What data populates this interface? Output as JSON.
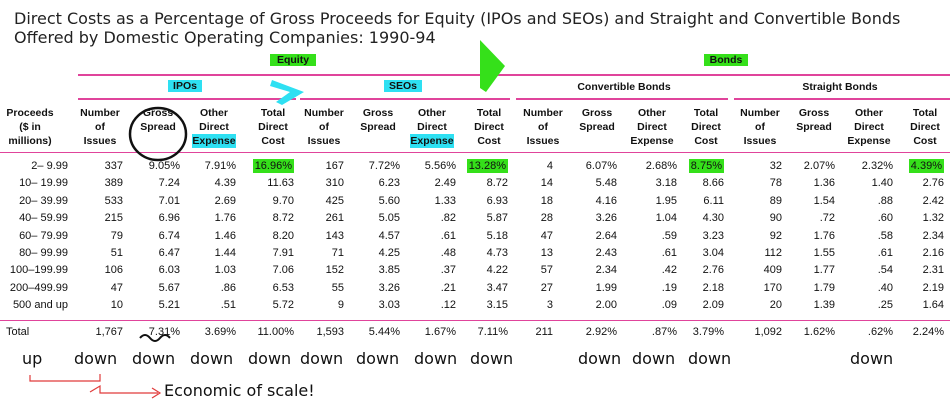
{
  "title": {
    "line1": "Direct Costs as a Percentage of Gross Proceeds for Equity (IPOs and SEOs) and Straight and Convertible Bonds",
    "line2": "Offered by Domestic Operating Companies: 1990-94"
  },
  "groups": {
    "equity": "Equity",
    "bonds": "Bonds"
  },
  "subgroups": {
    "ipos": "IPOs",
    "seos": "SEOs",
    "convertible": "Convertible Bonds",
    "straight": "Straight Bonds"
  },
  "columns": {
    "proceeds": "Proceeds\n($ in\nmillions)",
    "num": "Number\nof\nIssues",
    "gross": "Gross\nSpread",
    "other": "Other\nDirect\nExpense",
    "total": "Total\nDirect\nCost"
  },
  "rows": [
    {
      "label": "2–  9.99",
      "vals": [
        "337",
        "9.05%",
        "7.91%",
        "16.96%",
        "167",
        "7.72%",
        "5.56%",
        "13.28%",
        "4",
        "6.07%",
        "2.68%",
        "8.75%",
        "32",
        "2.07%",
        "2.32%",
        "4.39%"
      ]
    },
    {
      "label": "10– 19.99",
      "vals": [
        "389",
        "7.24",
        "4.39",
        "11.63",
        "310",
        "6.23",
        "2.49",
        "8.72",
        "14",
        "5.48",
        "3.18",
        "8.66",
        "78",
        "1.36",
        "1.40",
        "2.76"
      ]
    },
    {
      "label": "20– 39.99",
      "vals": [
        "533",
        "7.01",
        "2.69",
        "9.70",
        "425",
        "5.60",
        "1.33",
        "6.93",
        "18",
        "4.16",
        "1.95",
        "6.11",
        "89",
        "1.54",
        ".88",
        "2.42"
      ]
    },
    {
      "label": "40– 59.99",
      "vals": [
        "215",
        "6.96",
        "1.76",
        "8.72",
        "261",
        "5.05",
        ".82",
        "5.87",
        "28",
        "3.26",
        "1.04",
        "4.30",
        "90",
        ".72",
        ".60",
        "1.32"
      ]
    },
    {
      "label": "60– 79.99",
      "vals": [
        "79",
        "6.74",
        "1.46",
        "8.20",
        "143",
        "4.57",
        ".61",
        "5.18",
        "47",
        "2.64",
        ".59",
        "3.23",
        "92",
        "1.76",
        ".58",
        "2.34"
      ]
    },
    {
      "label": "80– 99.99",
      "vals": [
        "51",
        "6.47",
        "1.44",
        "7.91",
        "71",
        "4.25",
        ".48",
        "4.73",
        "13",
        "2.43",
        ".61",
        "3.04",
        "112",
        "1.55",
        ".61",
        "2.16"
      ]
    },
    {
      "label": "100–199.99",
      "vals": [
        "106",
        "6.03",
        "1.03",
        "7.06",
        "152",
        "3.85",
        ".37",
        "4.22",
        "57",
        "2.34",
        ".42",
        "2.76",
        "409",
        "1.77",
        ".54",
        "2.31"
      ]
    },
    {
      "label": "200–499.99",
      "vals": [
        "47",
        "5.67",
        ".86",
        "6.53",
        "55",
        "3.26",
        ".21",
        "3.47",
        "27",
        "1.99",
        ".19",
        "2.18",
        "170",
        "1.79",
        ".40",
        "2.19"
      ]
    },
    {
      "label": "500 and up",
      "vals": [
        "10",
        "5.21",
        ".51",
        "5.72",
        "9",
        "3.03",
        ".12",
        "3.15",
        "3",
        "2.00",
        ".09",
        "2.09",
        "20",
        "1.39",
        ".25",
        "1.64"
      ]
    }
  ],
  "total": {
    "label": "Total",
    "vals": [
      "1,767",
      "7.31%",
      "3.69%",
      "11.00%",
      "1,593",
      "5.44%",
      "1.67%",
      "7.11%",
      "211",
      "2.92%",
      ".87%",
      "3.79%",
      "1,092",
      "1.62%",
      ".62%",
      "2.24%"
    ]
  },
  "annotations": {
    "up": "up",
    "down": "down",
    "economies": "Economic of scale!"
  },
  "colors": {
    "pink_rule": "#e0449b",
    "green_highlight": "#35e01a",
    "cyan_highlight": "#2ee0f2",
    "red_arrow": "#e03b3b"
  }
}
